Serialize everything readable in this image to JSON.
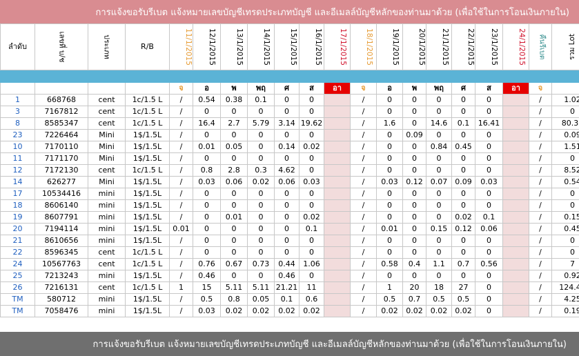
{
  "banner_top": "การแจ้งขอรับรีเบต  แจ้งหมายเลขบัญชีเทรดประเภทบัญชี และอีเมลล์บัญชีหลักของท่านมาด้วย  (เพื่อใช้ในการโอนเงินภายใน)",
  "banner_bottom": "การแจ้งขอรับรีเบต  แจ้งหมายเลขบัญชีเทรดประเภทบัญชี และอีเมลล์บัญชีหลักของท่านมาด้วย  (เพื่อใช้ในการโอนเงินภายใน)",
  "headers": {
    "seq": "ลำดับ",
    "acct": "เลขที่ บ/ช",
    "type": "ประเภท",
    "rb": "R/B",
    "dates": [
      "11/1/2015",
      "12/1/2015",
      "13/1/2015",
      "14/1/2015",
      "15/1/2015",
      "16/1/2015",
      "17/1/2015",
      "18/1/2015",
      "19/1/2015",
      "20/1/2015",
      "21/1/2015",
      "22/1/2015",
      "23/1/2015",
      "24/1/2015",
      "คืนรีเบต"
    ],
    "total": "รวม Lot"
  },
  "days": [
    "จ",
    "อ",
    "พ",
    "พฤ",
    "ศ",
    "ส",
    "อา",
    "จ",
    "อ",
    "พ",
    "พฤ",
    "ศ",
    "ส",
    "อา",
    "จ"
  ],
  "rows": [
    {
      "seq": "1",
      "acct": "668768",
      "type": "cent",
      "rb": "1c/1.5 L",
      "c": [
        "/",
        "0.54",
        "0.38",
        "0.1",
        "0",
        "0",
        "",
        "/",
        "0",
        "0",
        "0",
        "0",
        "0",
        "",
        "/"
      ],
      "total": "1.02"
    },
    {
      "seq": "3",
      "acct": "7167812",
      "type": "cent",
      "rb": "1c/1.5 L",
      "c": [
        "/",
        "0",
        "0",
        "0",
        "0",
        "0",
        "",
        "/",
        "0",
        "0",
        "0",
        "0",
        "0",
        "",
        "/"
      ],
      "total": "0"
    },
    {
      "seq": "8",
      "acct": "8585347",
      "type": "cent",
      "rb": "1c/1.5 L",
      "c": [
        "/",
        "16.4",
        "2.7",
        "5.79",
        "3.14",
        "19.62",
        "",
        "/",
        "1.6",
        "0",
        "14.6",
        "0.1",
        "16.41",
        "",
        "/"
      ],
      "total": "80.36"
    },
    {
      "seq": "23",
      "acct": "7226464",
      "type": "Mini",
      "rb": "1$/1.5L",
      "c": [
        "/",
        "0",
        "0",
        "0",
        "0",
        "0",
        "",
        "/",
        "0",
        "0.09",
        "0",
        "0",
        "0",
        "",
        "/"
      ],
      "total": "0.09"
    },
    {
      "seq": "10",
      "acct": "7170110",
      "type": "Mini",
      "rb": "1$/1.5L",
      "c": [
        "/",
        "0.01",
        "0.05",
        "0",
        "0.14",
        "0.02",
        "",
        "/",
        "0",
        "0",
        "0.84",
        "0.45",
        "0",
        "",
        "/"
      ],
      "total": "1.51"
    },
    {
      "seq": "11",
      "acct": "7171170",
      "type": "Mini",
      "rb": "1$/1.5L",
      "c": [
        "/",
        "0",
        "0",
        "0",
        "0",
        "0",
        "",
        "/",
        "0",
        "0",
        "0",
        "0",
        "0",
        "",
        "/"
      ],
      "total": "0"
    },
    {
      "seq": "12",
      "acct": "7172130",
      "type": "cent",
      "rb": "1c/1.5 L",
      "c": [
        "/",
        "0.8",
        "2.8",
        "0.3",
        "4.62",
        "0",
        "",
        "/",
        "0",
        "0",
        "0",
        "0",
        "0",
        "",
        "/"
      ],
      "total": "8.52"
    },
    {
      "seq": "14",
      "acct": "626277",
      "type": "Mini",
      "rb": "1$/1.5L",
      "c": [
        "/",
        "0.03",
        "0.06",
        "0.02",
        "0.06",
        "0.03",
        "",
        "/",
        "0.03",
        "0.12",
        "0.07",
        "0.09",
        "0.03",
        "",
        "/"
      ],
      "total": "0.54"
    },
    {
      "seq": "17",
      "acct": "10534416",
      "type": "mini",
      "rb": "1$/1.5L",
      "c": [
        "/",
        "0",
        "0",
        "0",
        "0",
        "0",
        "",
        "/",
        "0",
        "0",
        "0",
        "0",
        "0",
        "",
        "/"
      ],
      "total": "0"
    },
    {
      "seq": "18",
      "acct": "8606140",
      "type": "mini",
      "rb": "1$/1.5L",
      "c": [
        "/",
        "0",
        "0",
        "0",
        "0",
        "0",
        "",
        "/",
        "0",
        "0",
        "0",
        "0",
        "0",
        "",
        "/"
      ],
      "total": "0"
    },
    {
      "seq": "19",
      "acct": "8607791",
      "type": "mini",
      "rb": "1$/1.5L",
      "c": [
        "/",
        "0",
        "0.01",
        "0",
        "0",
        "0.02",
        "",
        "/",
        "0",
        "0",
        "0",
        "0.02",
        "0.1",
        "",
        "/"
      ],
      "total": "0.15"
    },
    {
      "seq": "20",
      "acct": "7194114",
      "type": "mini",
      "rb": "1$/1.5L",
      "c": [
        "0.01",
        "0",
        "0",
        "0",
        "0",
        "0.1",
        "",
        "/",
        "0.01",
        "0",
        "0.15",
        "0.12",
        "0.06",
        "",
        "/"
      ],
      "total": "0.45"
    },
    {
      "seq": "21",
      "acct": "8610656",
      "type": "mini",
      "rb": "1$/1.5L",
      "c": [
        "/",
        "0",
        "0",
        "0",
        "0",
        "0",
        "",
        "/",
        "0",
        "0",
        "0",
        "0",
        "0",
        "",
        "/"
      ],
      "total": "0"
    },
    {
      "seq": "22",
      "acct": "8596345",
      "type": "cent",
      "rb": "1c/1.5 L",
      "c": [
        "/",
        "0",
        "0",
        "0",
        "0",
        "0",
        "",
        "/",
        "0",
        "0",
        "0",
        "0",
        "0",
        "",
        "/"
      ],
      "total": "0"
    },
    {
      "seq": "24",
      "acct": "10567763",
      "type": "cent",
      "rb": "1c/1.5 L",
      "c": [
        "/",
        "0.76",
        "0.67",
        "0.73",
        "0.44",
        "1.06",
        "",
        "/",
        "0.58",
        "0.4",
        "1.1",
        "0.7",
        "0.56",
        "",
        "/"
      ],
      "total": "7"
    },
    {
      "seq": "25",
      "acct": "7213243",
      "type": "mini",
      "rb": "1$/1.5L",
      "c": [
        "/",
        "0.46",
        "0",
        "0",
        "0.46",
        "0",
        "",
        "/",
        "0",
        "0",
        "0",
        "0",
        "0",
        "",
        "/"
      ],
      "total": "0.92"
    },
    {
      "seq": "26",
      "acct": "7216131",
      "type": "cent",
      "rb": "1c/1.5 L",
      "c": [
        "1",
        "15",
        "5.11",
        "5.11",
        "21.21",
        "11",
        "",
        "/",
        "1",
        "20",
        "18",
        "27",
        "0",
        "",
        "/"
      ],
      "total": "124.43"
    },
    {
      "seq": "TM",
      "acct": "580712",
      "type": "mini",
      "rb": "1$/1.5L",
      "c": [
        "/",
        "0.5",
        "0.8",
        "0.05",
        "0.1",
        "0.6",
        "",
        "/",
        "0.5",
        "0.7",
        "0.5",
        "0.5",
        "0",
        "",
        "/"
      ],
      "total": "4.25"
    },
    {
      "seq": "TM",
      "acct": "7058476",
      "type": "mini",
      "rb": "1$/1.5L",
      "c": [
        "/",
        "0.03",
        "0.02",
        "0.02",
        "0.02",
        "0.02",
        "",
        "/",
        "0.02",
        "0.02",
        "0.02",
        "0.02",
        "0",
        "",
        "/"
      ],
      "total": "0.19"
    }
  ]
}
